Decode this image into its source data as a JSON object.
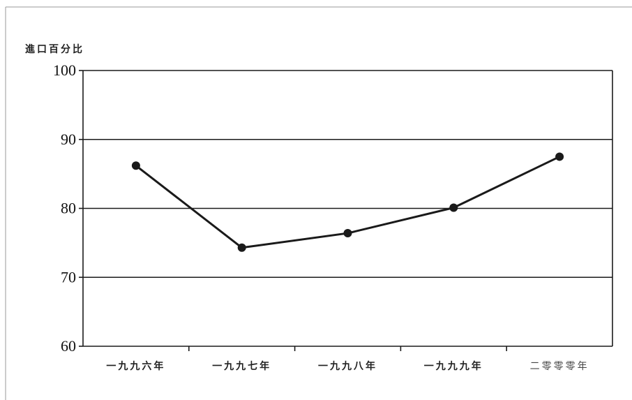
{
  "chart_data": {
    "type": "line",
    "title": "",
    "ylabel": "進口百分比",
    "xlabel": "",
    "categories": [
      "一九九六年",
      "一九九七年",
      "一九九八年",
      "一九九九年",
      "二零零零年"
    ],
    "series": [
      {
        "values": [
          86.2,
          74.3,
          76.4,
          80.1,
          87.5
        ]
      }
    ],
    "ylim": [
      60,
      100
    ],
    "yticks": [
      60,
      70,
      80,
      90,
      100
    ],
    "grid": "horizontal",
    "legend": "none",
    "colors": {
      "line": "#1a1a1a",
      "marker": "#1a1a1a",
      "grid": "#1a1a1a",
      "frame_border": "#999999"
    }
  }
}
